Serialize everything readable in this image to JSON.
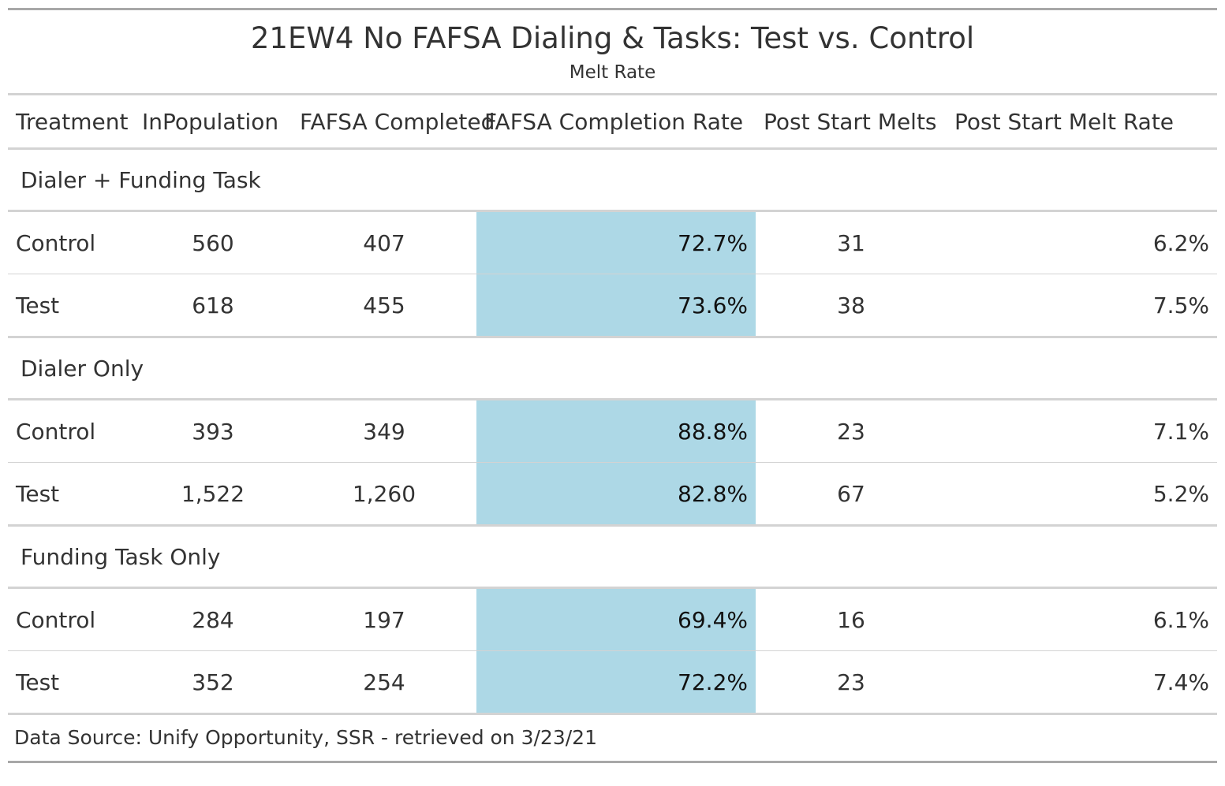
{
  "title": "21EW4 No FAFSA Dialing & Tasks: Test vs. Control",
  "subtitle": "Melt Rate",
  "columns": [
    "Treatment",
    "InPopulation",
    "FAFSA Completed",
    "FAFSA Completion Rate",
    "Post Start Melts",
    "Post Start Melt Rate"
  ],
  "groups": [
    {
      "label": "Dialer + Funding Task",
      "rows": [
        {
          "treatment": "Control",
          "population": "560",
          "completed": "407",
          "completion_rate": "72.7%",
          "melts": "31",
          "melt_rate": "6.2%"
        },
        {
          "treatment": "Test",
          "population": "618",
          "completed": "455",
          "completion_rate": "73.6%",
          "melts": "38",
          "melt_rate": "7.5%"
        }
      ]
    },
    {
      "label": "Dialer Only",
      "rows": [
        {
          "treatment": "Control",
          "population": "393",
          "completed": "349",
          "completion_rate": "88.8%",
          "melts": "23",
          "melt_rate": "7.1%"
        },
        {
          "treatment": "Test",
          "population": "1,522",
          "completed": "1,260",
          "completion_rate": "82.8%",
          "melts": "67",
          "melt_rate": "5.2%"
        }
      ]
    },
    {
      "label": "Funding Task Only",
      "rows": [
        {
          "treatment": "Control",
          "population": "284",
          "completed": "197",
          "completion_rate": "69.4%",
          "melts": "16",
          "melt_rate": "6.1%"
        },
        {
          "treatment": "Test",
          "population": "352",
          "completed": "254",
          "completion_rate": "72.2%",
          "melts": "23",
          "melt_rate": "7.4%"
        }
      ]
    }
  ],
  "footer": "Data Source: Unify Opportunity, SSR - retrieved on 3/23/21",
  "colors": {
    "highlight": "#add8e6",
    "rule": "#d3d3d3",
    "outer_rule": "#a8a8a8",
    "text": "#333333"
  }
}
